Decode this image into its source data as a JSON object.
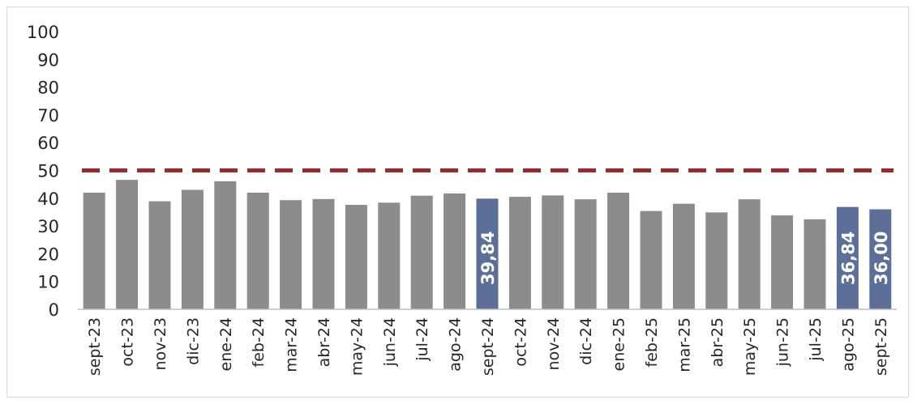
{
  "chart_data": {
    "type": "bar",
    "title": "",
    "xlabel": "",
    "ylabel": "",
    "ylim": [
      0,
      100
    ],
    "yticks": [
      0,
      10,
      20,
      30,
      40,
      50,
      60,
      70,
      80,
      90,
      100
    ],
    "grid": false,
    "categories": [
      "sept-23",
      "oct-23",
      "nov-23",
      "dic-23",
      "ene-24",
      "feb-24",
      "mar-24",
      "abr-24",
      "may-24",
      "jun-24",
      "jul-24",
      "ago-24",
      "sept-24",
      "oct-24",
      "nov-24",
      "dic-24",
      "ene-25",
      "feb-25",
      "mar-25",
      "abr-25",
      "may-25",
      "jun-25",
      "jul-25",
      "ago-25",
      "sept-25"
    ],
    "values": [
      42.0,
      46.6,
      38.9,
      43.0,
      46.1,
      42.0,
      39.3,
      39.7,
      37.6,
      38.4,
      40.9,
      41.7,
      39.84,
      40.5,
      41.0,
      39.6,
      42.0,
      35.4,
      38.0,
      34.9,
      39.6,
      33.8,
      32.4,
      36.84,
      36.0
    ],
    "highlighted": [
      false,
      false,
      false,
      false,
      false,
      false,
      false,
      false,
      false,
      false,
      false,
      false,
      true,
      false,
      false,
      false,
      false,
      false,
      false,
      false,
      false,
      false,
      false,
      true,
      true
    ],
    "data_labels": {
      "12": "39,84",
      "23": "36,84",
      "24": "36,00"
    },
    "reference_line": {
      "value": 50,
      "style": "dashed"
    },
    "colors": {
      "bar": "#8c8c8c",
      "highlight": "#5b6f99",
      "reference": "#9c2a2e",
      "axis": "#bfbfbf"
    }
  }
}
